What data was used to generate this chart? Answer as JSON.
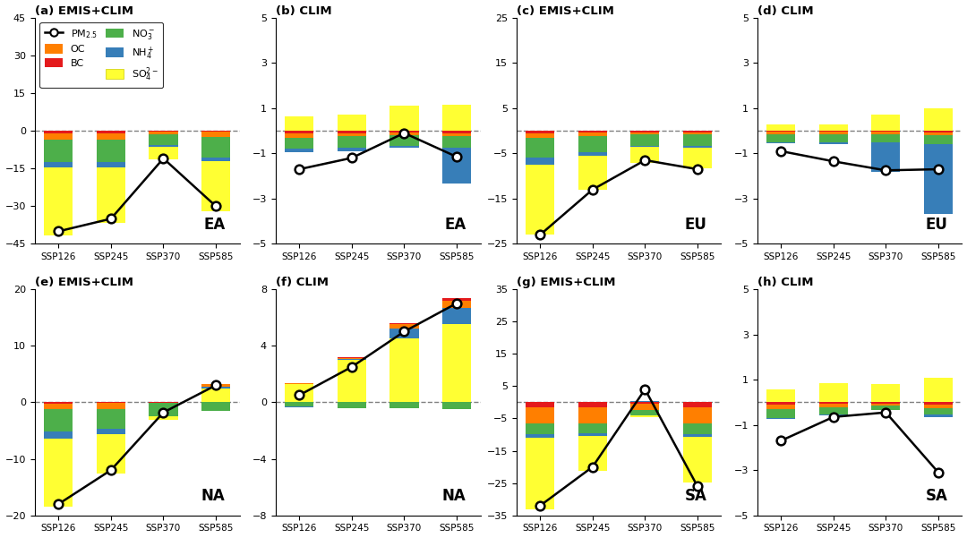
{
  "panels": [
    {
      "label": "(a) EMIS+CLIM",
      "region": "EA",
      "ylim": [
        -45,
        45
      ],
      "yticks": [
        -45,
        -30,
        -15,
        0,
        15,
        30,
        45
      ],
      "pm25": [
        -40,
        -35,
        -11,
        -30
      ],
      "bars": {
        "BC": [
          -1.0,
          -1.0,
          -0.5,
          -0.5
        ],
        "OC": [
          -2.5,
          -2.5,
          -1.0,
          -2.0
        ],
        "NO3": [
          -9.0,
          -9.0,
          -4.0,
          -8.0
        ],
        "NH4": [
          -2.0,
          -2.0,
          -0.8,
          -1.5
        ],
        "SO4": [
          -27.0,
          -22.0,
          -5.0,
          -20.0
        ]
      }
    },
    {
      "label": "(b) CLIM",
      "region": "EA",
      "ylim": [
        -5,
        5
      ],
      "yticks": [
        -5,
        -3,
        -1,
        1,
        3,
        5
      ],
      "pm25": [
        -1.7,
        -1.2,
        -0.1,
        -1.15
      ],
      "bars": {
        "BC": [
          -0.1,
          -0.1,
          -0.08,
          -0.1
        ],
        "OC": [
          -0.2,
          -0.15,
          -0.12,
          -0.15
        ],
        "NO3": [
          -0.5,
          -0.5,
          -0.45,
          -0.5
        ],
        "NH4": [
          -0.15,
          -0.15,
          -0.1,
          -1.6
        ],
        "SO4": [
          0.65,
          0.7,
          1.1,
          1.15
        ]
      }
    },
    {
      "label": "(c) EMIS+CLIM",
      "region": "EU",
      "ylim": [
        -25,
        25
      ],
      "yticks": [
        -25,
        -15,
        -5,
        5,
        15,
        25
      ],
      "pm25": [
        -23,
        -13,
        -6.5,
        -8.5
      ],
      "bars": {
        "BC": [
          -0.5,
          -0.4,
          -0.3,
          -0.3
        ],
        "OC": [
          -1.0,
          -0.8,
          -0.5,
          -0.5
        ],
        "NO3": [
          -4.5,
          -3.5,
          -2.5,
          -2.5
        ],
        "NH4": [
          -1.5,
          -0.8,
          -0.3,
          -0.5
        ],
        "SO4": [
          -15.5,
          -7.5,
          -3.5,
          -4.5
        ]
      }
    },
    {
      "label": "(d) CLIM",
      "region": "EU",
      "ylim": [
        -5,
        5
      ],
      "yticks": [
        -5,
        -3,
        -1,
        1,
        3,
        5
      ],
      "pm25": [
        -0.9,
        -1.35,
        -1.75,
        -1.7
      ],
      "bars": {
        "BC": [
          -0.05,
          -0.05,
          -0.05,
          -0.08
        ],
        "OC": [
          -0.1,
          -0.1,
          -0.1,
          -0.1
        ],
        "NO3": [
          -0.35,
          -0.35,
          -0.35,
          -0.4
        ],
        "NH4": [
          -0.05,
          -0.1,
          -1.3,
          -3.1
        ],
        "SO4": [
          0.3,
          0.3,
          0.7,
          1.0
        ]
      }
    },
    {
      "label": "(e) EMIS+CLIM",
      "region": "NA",
      "ylim": [
        -20,
        20
      ],
      "yticks": [
        -20,
        -10,
        0,
        10,
        20
      ],
      "pm25": [
        -18,
        -12,
        -1.8,
        3.0
      ],
      "bars": {
        "BC": [
          -0.2,
          -0.15,
          -0.05,
          0.0
        ],
        "OC": [
          -1.0,
          -1.0,
          0.1,
          0.5
        ],
        "NO3": [
          -4.0,
          -3.5,
          -2.5,
          -1.5
        ],
        "NH4": [
          -1.2,
          -1.0,
          0.0,
          0.2
        ],
        "SO4": [
          -12.0,
          -7.0,
          -0.5,
          2.5
        ]
      }
    },
    {
      "label": "(f) CLIM",
      "region": "NA",
      "ylim": [
        -8,
        8
      ],
      "yticks": [
        -8,
        -4,
        0,
        4,
        8
      ],
      "pm25": [
        0.5,
        2.5,
        5.0,
        7.0
      ],
      "bars": {
        "BC": [
          0.02,
          0.05,
          0.1,
          0.15
        ],
        "OC": [
          0.05,
          0.1,
          0.3,
          0.5
        ],
        "NO3": [
          -0.3,
          -0.4,
          -0.4,
          -0.5
        ],
        "NH4": [
          -0.05,
          0.05,
          0.7,
          1.2
        ],
        "SO4": [
          1.3,
          3.0,
          4.5,
          5.5
        ]
      }
    },
    {
      "label": "(g) EMIS+CLIM",
      "region": "SA",
      "ylim": [
        -35,
        35
      ],
      "yticks": [
        -35,
        -25,
        -15,
        -5,
        5,
        15,
        25,
        35
      ],
      "pm25": [
        -32,
        -20,
        4.0,
        -26
      ],
      "bars": {
        "BC": [
          -1.5,
          -1.5,
          -0.5,
          -1.5
        ],
        "OC": [
          -5.0,
          -5.0,
          -2.0,
          -5.0
        ],
        "NO3": [
          -3.5,
          -3.0,
          -1.5,
          -3.5
        ],
        "NH4": [
          -1.0,
          -0.8,
          0.5,
          -0.8
        ],
        "SO4": [
          -22.0,
          -11.0,
          -0.5,
          -14.0
        ]
      }
    },
    {
      "label": "(h) CLIM",
      "region": "SA",
      "ylim": [
        -5,
        5
      ],
      "yticks": [
        -5,
        -3,
        -1,
        1,
        3,
        5
      ],
      "pm25": [
        -1.7,
        -0.65,
        -0.45,
        -3.1
      ],
      "bars": {
        "BC": [
          -0.1,
          -0.08,
          -0.05,
          -0.1
        ],
        "OC": [
          -0.2,
          -0.15,
          -0.1,
          -0.15
        ],
        "NO3": [
          -0.4,
          -0.3,
          -0.2,
          -0.3
        ],
        "NH4": [
          -0.05,
          -0.05,
          0.0,
          -0.1
        ],
        "SO4": [
          0.55,
          0.85,
          0.8,
          1.1
        ]
      }
    }
  ],
  "colors": {
    "BC": "#e41a1c",
    "OC": "#ff7f00",
    "NO3": "#4daf4a",
    "NH4": "#377eb8",
    "SO4": "#ffff33"
  },
  "x_labels": [
    "SSP126",
    "SSP245",
    "SSP370",
    "SSP585"
  ],
  "bar_width": 0.55
}
